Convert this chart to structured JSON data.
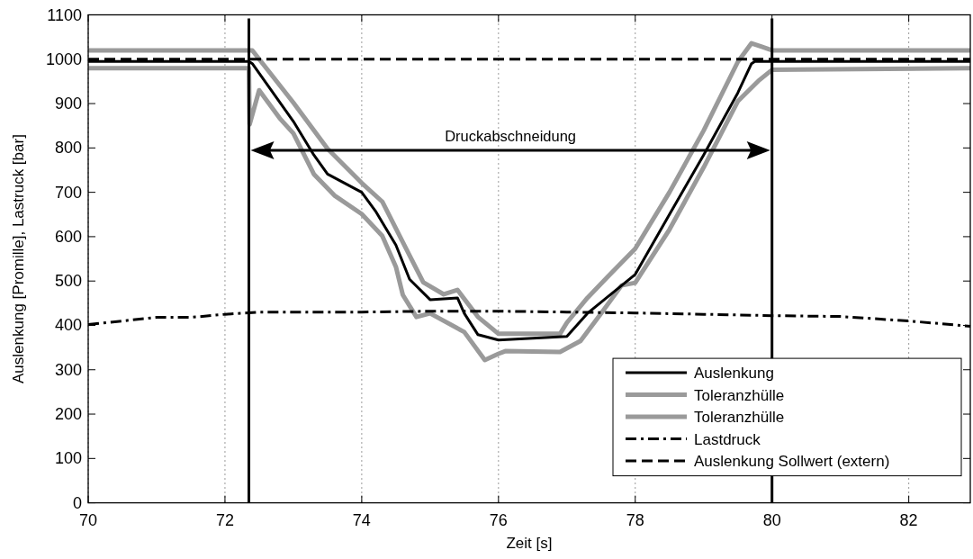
{
  "chart_data": {
    "type": "line",
    "xlabel": "Zeit [s]",
    "ylabel": "Auslenkung [Promille], Lastruck [bar]",
    "xlim": [
      70,
      82.9
    ],
    "xticks": [
      70,
      72,
      74,
      76,
      78,
      80,
      82
    ],
    "ylim": [
      0,
      1100
    ],
    "yticks": [
      0,
      100,
      200,
      300,
      400,
      500,
      600,
      700,
      800,
      900,
      1000,
      1100
    ],
    "grid": "x",
    "legend": "bottom right",
    "series": [
      {
        "name": "Auslenkung",
        "color": "#000000",
        "line_style": "solid",
        "x": [
          70,
          72.35,
          72.4,
          73,
          73.3,
          73.5,
          74,
          74.2,
          74.5,
          74.7,
          75,
          75.4,
          75.5,
          75.7,
          76,
          77,
          77.3,
          78,
          78.5,
          79,
          79.5,
          79.7,
          79.75,
          82.9
        ],
        "values": [
          995,
          995,
          990,
          860,
          784,
          741,
          700,
          658,
          581,
          504,
          458,
          462,
          427,
          379,
          367,
          375,
          427,
          515,
          650,
          784,
          924,
          990,
          995,
          995
        ]
      },
      {
        "name": "Toleranzhülle",
        "color": "#9a9a9a",
        "line_style": "solid",
        "x": [
          70,
          72.35,
          72.4,
          73,
          73.5,
          74,
          74.3,
          74.6,
          74.9,
          75.2,
          75.4,
          75.7,
          76,
          76.9,
          77,
          77.3,
          77.6,
          78,
          78.5,
          79,
          79.5,
          79.7,
          79.85,
          80,
          82.9
        ],
        "values": [
          1020,
          1020,
          1020,
          902,
          798,
          721,
          679,
          588,
          497,
          470,
          480,
          419,
          381,
          381,
          406,
          462,
          510,
          573,
          700,
          839,
          994,
          1036,
          1028,
          1020,
          1020
        ]
      },
      {
        "name": "Toleranzhülle",
        "color": "#9a9a9a",
        "line_style": "solid",
        "x": [
          70,
          72.35,
          72.36,
          72.5,
          72.8,
          73,
          73.3,
          73.6,
          74,
          74.3,
          74.5,
          74.6,
          74.8,
          75,
          75.5,
          75.8,
          76,
          76.1,
          76.9,
          77.2,
          77.5,
          77.8,
          78,
          78.5,
          79,
          79.5,
          79.8,
          80,
          82.9
        ],
        "values": [
          980,
          980,
          853,
          930,
          867,
          833,
          741,
          693,
          651,
          602,
          532,
          469,
          419,
          427,
          385,
          322,
          336,
          342,
          340,
          365,
          427,
          490,
          496,
          616,
          756,
          905,
          951,
          976,
          980
        ]
      },
      {
        "name": "Lastdruck",
        "color": "#000000",
        "line_style": "dashdot",
        "x": [
          70,
          70.5,
          71,
          71.5,
          72,
          72.5,
          73,
          74,
          75,
          76,
          77,
          78,
          79,
          80,
          81,
          82,
          82.9
        ],
        "values": [
          402,
          410,
          418,
          418,
          425,
          430,
          430,
          430,
          432,
          432,
          430,
          428,
          425,
          422,
          420,
          410,
          398
        ]
      },
      {
        "name": "Auslenkung Sollwert (extern)",
        "color": "#000000",
        "line_style": "dashed",
        "x": [
          70,
          82.9
        ],
        "values": [
          1000,
          1000
        ]
      }
    ],
    "ref_lines": [
      {
        "axis": "x",
        "value": 72.35,
        "color": "#000000",
        "line_style": "solid"
      },
      {
        "axis": "x",
        "value": 80,
        "color": "#000000",
        "line_style": "solid"
      }
    ],
    "annotations": [
      "Druckabschneidung"
    ]
  }
}
